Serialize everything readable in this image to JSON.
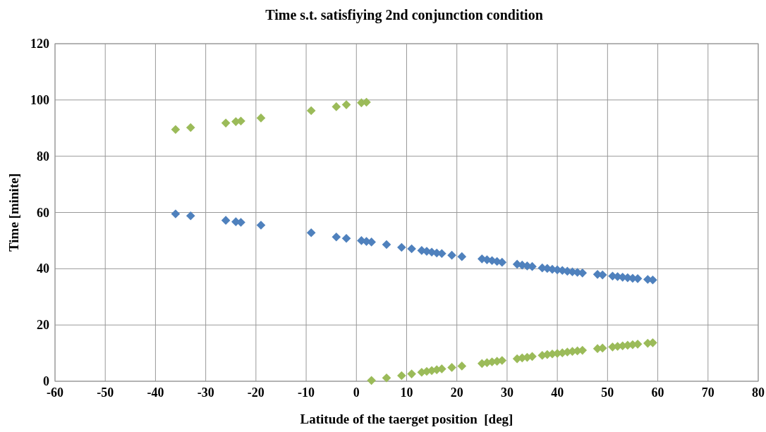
{
  "chart_data": {
    "type": "scatter",
    "title": "Time s.t. satisfiying 2nd conjunction condition",
    "xlabel": "Latitude of the taerget position  [deg]",
    "ylabel": "Time [minite]",
    "xlim": [
      -60,
      80
    ],
    "xticks": [
      -60,
      -50,
      -40,
      -30,
      -20,
      -10,
      0,
      10,
      20,
      30,
      40,
      50,
      60,
      70,
      80
    ],
    "ylim": [
      0,
      120
    ],
    "yticks": [
      0,
      20,
      40,
      60,
      80,
      100,
      120
    ],
    "grid": true,
    "marker": "diamond",
    "series": [
      {
        "color": "#4f81bd",
        "x": [
          -36,
          -33,
          -26,
          -24,
          -23,
          -19,
          -9,
          -4,
          -2,
          1,
          2,
          3,
          6,
          9,
          11,
          13,
          14,
          15,
          16,
          17,
          19,
          21,
          25,
          26,
          27,
          28,
          29,
          32,
          33,
          34,
          35,
          37,
          38,
          39,
          40,
          41,
          42,
          43,
          44,
          45,
          48,
          49,
          51,
          52,
          53,
          54,
          55,
          56,
          58,
          59
        ],
        "values": [
          59.5,
          58.8,
          57.2,
          56.7,
          56.5,
          55.5,
          52.8,
          51.3,
          50.8,
          50,
          49.7,
          49.5,
          48.6,
          47.6,
          47.1,
          46.5,
          46.2,
          45.9,
          45.6,
          45.4,
          44.8,
          44.3,
          43.5,
          43.2,
          42.9,
          42.6,
          42.3,
          41.6,
          41.3,
          41,
          40.8,
          40.3,
          40.1,
          39.8,
          39.6,
          39.4,
          39.1,
          38.9,
          38.7,
          38.5,
          38,
          37.8,
          37.4,
          37.2,
          37,
          36.8,
          36.6,
          36.5,
          36.2,
          36
        ]
      },
      {
        "color": "#9bbb59",
        "x": [
          -36,
          -33,
          -26,
          -24,
          -23,
          -19,
          -9,
          -4,
          -2,
          1,
          2,
          3,
          6,
          9,
          11,
          13,
          14,
          15,
          16,
          17,
          19,
          21,
          25,
          26,
          27,
          28,
          29,
          32,
          33,
          34,
          35,
          37,
          38,
          39,
          40,
          41,
          42,
          43,
          44,
          45,
          48,
          49,
          51,
          52,
          53,
          54,
          55,
          56,
          58,
          59
        ],
        "values": [
          89.5,
          90.2,
          91.8,
          92.3,
          92.5,
          93.6,
          96.2,
          97.6,
          98.3,
          99,
          99.2,
          0.3,
          1.2,
          2,
          2.6,
          3.2,
          3.5,
          3.8,
          4.1,
          4.4,
          4.9,
          5.4,
          6.3,
          6.6,
          6.9,
          7.1,
          7.4,
          8,
          8.3,
          8.5,
          8.8,
          9.2,
          9.5,
          9.7,
          9.9,
          10.1,
          10.4,
          10.6,
          10.8,
          11,
          11.6,
          11.8,
          12.2,
          12.4,
          12.6,
          12.8,
          13,
          13.2,
          13.5,
          13.7
        ]
      }
    ]
  }
}
